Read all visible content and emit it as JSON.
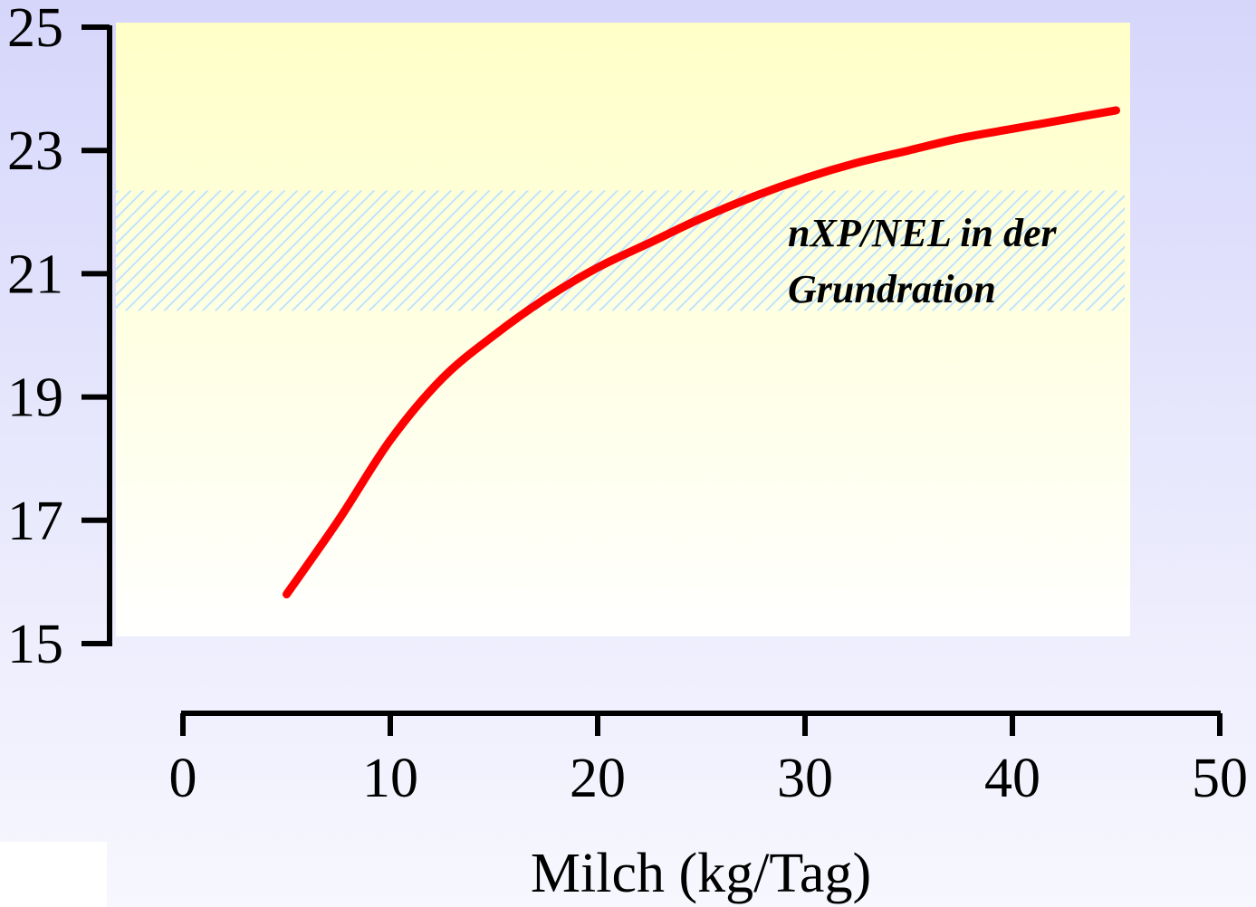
{
  "chart_data": {
    "type": "line",
    "title": "",
    "xlabel": "Milch (kg/Tag)",
    "ylabel": "",
    "xlim": [
      0,
      50
    ],
    "ylim": [
      15,
      25
    ],
    "x_ticks": [
      "0",
      "10",
      "20",
      "30",
      "40",
      "50"
    ],
    "y_ticks": [
      "15",
      "17",
      "19",
      "21",
      "23",
      "25"
    ],
    "series": [
      {
        "color": "#ff0000",
        "x": [
          5,
          7.5,
          10,
          12.5,
          15,
          17.5,
          20,
          22.5,
          25,
          27.5,
          30,
          32.5,
          35,
          37.5,
          40,
          42.5,
          45
        ],
        "y": [
          15.8,
          17.0,
          18.3,
          19.3,
          20.0,
          20.6,
          21.1,
          21.5,
          21.9,
          22.25,
          22.55,
          22.8,
          23.0,
          23.2,
          23.35,
          23.5,
          23.65
        ]
      }
    ],
    "band": {
      "y_range": [
        20.4,
        22.35
      ],
      "label_line1": "nXP/NEL in der",
      "label_line2": "Grundration",
      "fill": "hatched"
    },
    "colors": {
      "plot_top": "#ffffc8",
      "plot_bottom": "#ffffff",
      "hatch": "#bfe4ff",
      "line": "#ff0000"
    },
    "grid": false
  }
}
